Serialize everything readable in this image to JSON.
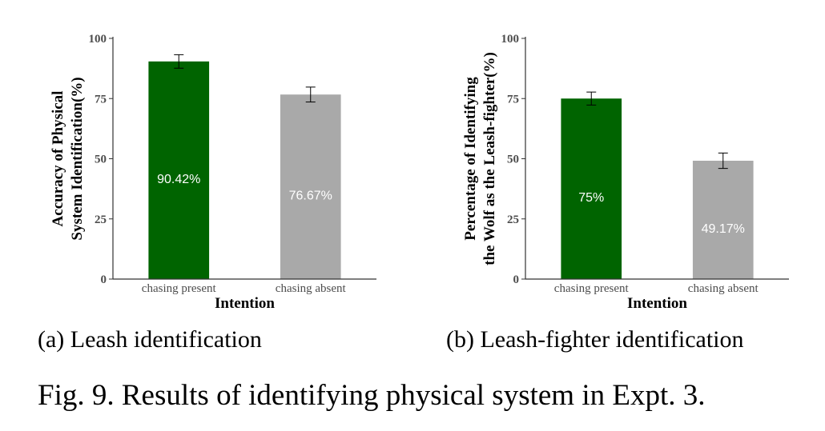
{
  "chart_data": [
    {
      "type": "bar",
      "categories": [
        "chasing present",
        "chasing absent"
      ],
      "values": [
        90.42,
        76.67
      ],
      "error": [
        2.8,
        3.1
      ],
      "data_labels": [
        "90.42%",
        "76.67%"
      ],
      "colors": [
        "#006400",
        "#a9a9a9"
      ],
      "ylabel": [
        "Accuracy of Physical",
        "System Identification(%)"
      ],
      "xlabel": "Intention",
      "ylim": [
        0,
        100
      ],
      "yticks": [
        0,
        25,
        50,
        75,
        100
      ],
      "grid": false
    },
    {
      "type": "bar",
      "categories": [
        "chasing present",
        "chasing absent"
      ],
      "values": [
        75,
        49.17
      ],
      "error": [
        2.7,
        3.2
      ],
      "data_labels": [
        "75%",
        "49.17%"
      ],
      "colors": [
        "#006400",
        "#a9a9a9"
      ],
      "ylabel": [
        "Percentage of Identifying",
        "the Wolf as the Leash-fighter(%)"
      ],
      "xlabel": "Intention",
      "ylim": [
        0,
        100
      ],
      "yticks": [
        0,
        25,
        50,
        75,
        100
      ],
      "grid": false
    }
  ],
  "subcaptions": {
    "a": "(a) Leash identification",
    "b": "(b) Leash-fighter identification"
  },
  "figure_caption": "Fig. 9. Results of identifying physical system in Expt. 3."
}
